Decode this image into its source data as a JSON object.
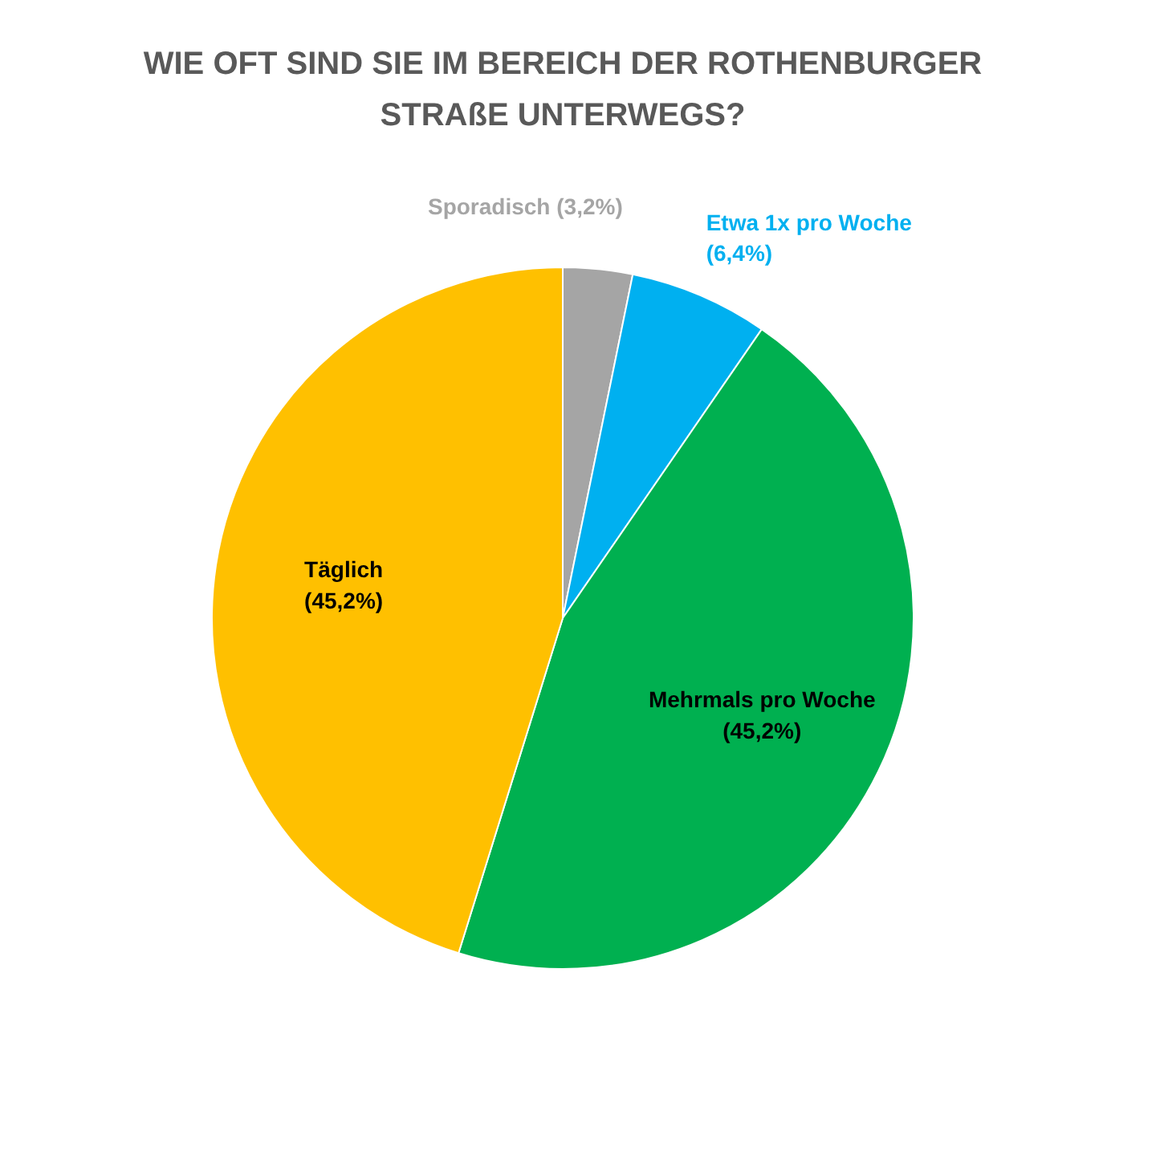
{
  "chart_data": {
    "type": "pie",
    "title": "WIE OFT SIND SIE IM BEREICH DER ROTHENBURGER STRAßE UNTERWEGS?",
    "categories": [
      "Sporadisch",
      "Etwa 1x pro Woche",
      "Mehrmals pro Woche",
      "Täglich"
    ],
    "values": [
      3.2,
      6.4,
      45.2,
      45.2
    ],
    "value_labels": [
      "(3,2%)",
      "(6,4%)",
      "(45,2%)",
      "(45,2%)"
    ],
    "colors": [
      "#a5a5a5",
      "#00b0f0",
      "#00b050",
      "#ffc000"
    ],
    "legend": false
  }
}
